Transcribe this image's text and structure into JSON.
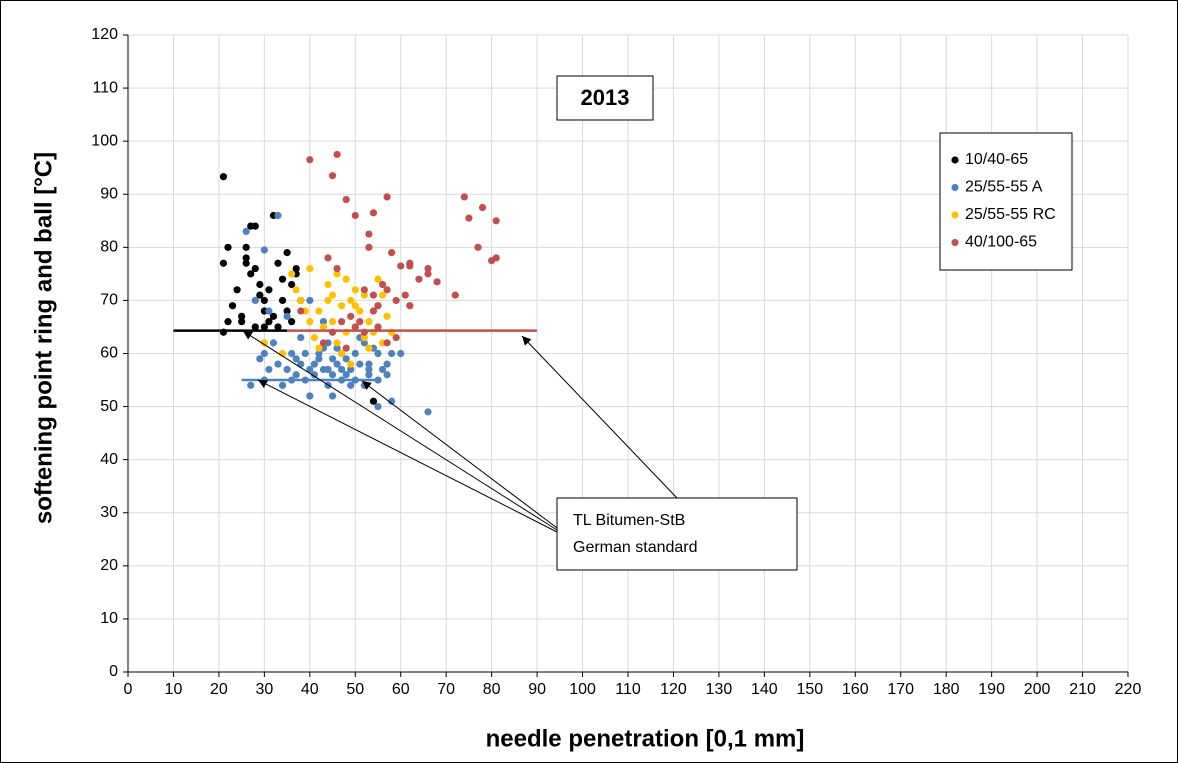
{
  "chart_data": {
    "type": "scatter",
    "title": "2013",
    "xlabel": "needle penetration [0,1 mm]",
    "ylabel": "softening point ring and ball [°C]",
    "xlim": [
      0,
      220
    ],
    "xticks": [
      0,
      10,
      20,
      30,
      40,
      50,
      60,
      70,
      80,
      90,
      100,
      110,
      120,
      130,
      140,
      150,
      160,
      170,
      180,
      190,
      200,
      210,
      220
    ],
    "ylim": [
      0,
      120
    ],
    "yticks": [
      0,
      10,
      20,
      30,
      40,
      50,
      60,
      70,
      80,
      90,
      100,
      110,
      120
    ],
    "grid": true,
    "legend": "upper right",
    "annotation": [
      "TL Bitumen-StB",
      "German standard"
    ],
    "series": [
      {
        "name": "10/40-65",
        "color": "#000000",
        "x": [
          21,
          22,
          21,
          23,
          24,
          25,
          26,
          26,
          27,
          28,
          27,
          28,
          29,
          30,
          30,
          31,
          32,
          33,
          34,
          35,
          36,
          37,
          37,
          38,
          28,
          32,
          35,
          36,
          29,
          31,
          25,
          33,
          22,
          54,
          21,
          34,
          30,
          26
        ],
        "values": [
          93.3,
          80,
          77,
          69,
          72,
          67,
          78,
          77,
          84,
          84,
          75,
          76,
          73,
          70,
          68,
          66,
          86,
          77,
          74,
          79,
          73,
          75,
          76,
          70,
          65,
          67,
          68,
          66,
          71,
          72,
          66,
          65,
          66,
          51,
          64,
          70,
          65,
          80
        ]
      },
      {
        "name": "25/55-55 A",
        "color": "#4f81bd",
        "x": [
          26,
          33,
          30,
          28,
          31,
          40,
          35,
          43,
          38,
          32,
          30,
          29,
          33,
          35,
          37,
          39,
          41,
          43,
          45,
          47,
          49,
          51,
          53,
          55,
          57,
          60,
          58,
          66,
          55,
          40,
          45,
          27,
          30,
          34,
          36,
          42,
          44,
          46,
          48,
          50,
          52,
          54,
          56,
          38,
          41,
          44,
          47,
          50,
          53,
          42,
          46,
          48,
          52,
          57,
          39,
          43,
          36,
          51,
          55,
          31,
          49,
          45,
          40,
          44,
          47,
          53,
          37,
          58
        ],
        "values": [
          83,
          86,
          79.5,
          70,
          68,
          70,
          67,
          66,
          63,
          62,
          60,
          59,
          58,
          57,
          56,
          55,
          58,
          57,
          56,
          55,
          57,
          58,
          56,
          55,
          58,
          60,
          51,
          49,
          50,
          52,
          52,
          54,
          55,
          54,
          60,
          60,
          62,
          61,
          59,
          60,
          62,
          61,
          57,
          58,
          56,
          54,
          57,
          55,
          58,
          59,
          58,
          56,
          54,
          56,
          60,
          61,
          55,
          63,
          60,
          57,
          54,
          59,
          57,
          57,
          60,
          57,
          59,
          60
        ]
      },
      {
        "name": "25/55-55 RC",
        "color": "#ffc000",
        "x": [
          36,
          40,
          44,
          46,
          48,
          50,
          52,
          38,
          42,
          44,
          47,
          49,
          51,
          53,
          55,
          57,
          40,
          43,
          45,
          48,
          50,
          52,
          54,
          56,
          58,
          41,
          46,
          30,
          34,
          42,
          47,
          49,
          53,
          39,
          45,
          50,
          56,
          37,
          55
        ],
        "values": [
          75,
          76,
          73,
          75,
          74,
          72,
          71,
          70,
          68,
          70,
          69,
          70,
          68,
          66,
          69,
          67,
          66,
          65,
          66,
          64,
          65,
          63,
          64,
          62,
          64,
          63,
          62,
          62,
          60,
          61,
          60,
          58,
          61,
          68,
          71,
          69,
          71,
          72,
          74
        ]
      },
      {
        "name": "40/100-65",
        "color": "#c0504d",
        "x": [
          40,
          46,
          45,
          48,
          57,
          50,
          54,
          53,
          53,
          58,
          60,
          62,
          62,
          64,
          66,
          66,
          68,
          72,
          74,
          75,
          78,
          77,
          80,
          81,
          81,
          56,
          57,
          59,
          61,
          62,
          52,
          54,
          55,
          44,
          46,
          49,
          50,
          52,
          54,
          47,
          38,
          43,
          57,
          59,
          48,
          45,
          51,
          55
        ],
        "values": [
          96.5,
          97.5,
          93.5,
          89,
          89.5,
          86,
          86.5,
          82.5,
          80,
          79,
          76.5,
          77,
          76.5,
          74,
          75,
          76,
          73.5,
          71,
          89.5,
          85.5,
          87.5,
          80,
          77.5,
          78,
          85,
          73,
          72,
          70,
          71,
          69,
          72,
          71,
          69,
          78,
          76,
          67,
          65,
          64,
          68,
          66,
          68,
          62,
          62,
          63,
          61,
          64,
          66,
          65
        ]
      }
    ],
    "reference_lines": [
      {
        "color": "#000000",
        "x": [
          10,
          35
        ],
        "y": 64.3
      },
      {
        "color": "#c0504d",
        "x": [
          35,
          90
        ],
        "y": 64.3
      },
      {
        "color": "#4f81bd",
        "x": [
          25,
          55
        ],
        "y": 55
      }
    ]
  }
}
